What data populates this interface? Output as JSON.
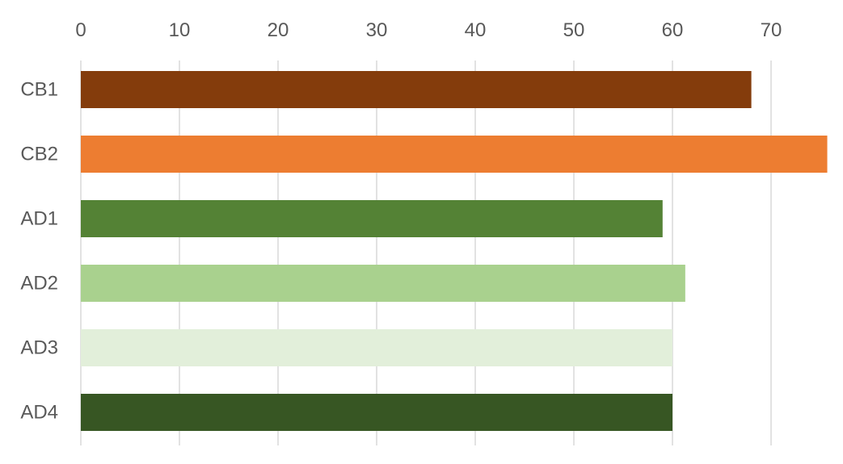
{
  "chart_data": {
    "type": "bar",
    "orientation": "horizontal",
    "x_axis_position": "top",
    "categories": [
      "CB1",
      "CB2",
      "AD1",
      "AD2",
      "AD3",
      "AD4"
    ],
    "values": [
      68,
      75.7,
      59,
      61.3,
      60,
      60
    ],
    "colors": [
      "#843C0C",
      "#ED7D31",
      "#548235",
      "#A9D18E",
      "#E2EFDA",
      "#375623"
    ],
    "xlim": [
      0,
      75.7
    ],
    "xticks": [
      0,
      10,
      20,
      30,
      40,
      50,
      60,
      70
    ],
    "grid": true,
    "gridline_color": "#D9D9D9",
    "legend": "none",
    "title": "",
    "xlabel": "",
    "ylabel": ""
  }
}
